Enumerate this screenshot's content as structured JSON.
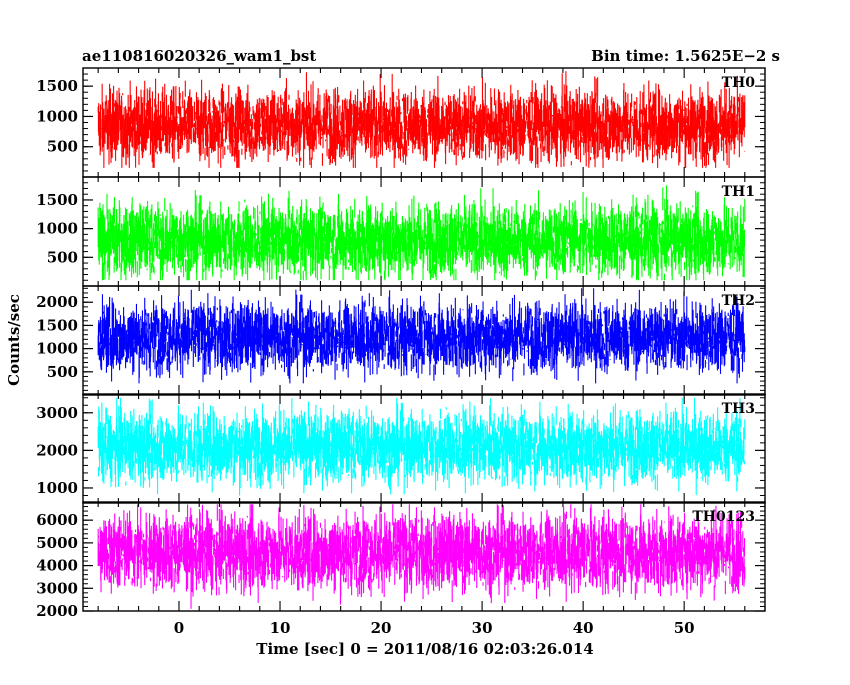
{
  "chart_data": {
    "type": "line",
    "title_left": "ae110816020326_wam1_bst",
    "title_right": "Bin time: 1.5625E−2 s",
    "xlabel": "Time [sec] 0 = 2011/08/16 02:03:26.014",
    "ylabel": "Counts/sec",
    "xlim": [
      -9.5,
      58
    ],
    "x_range": [
      -8,
      56
    ],
    "x_ticks": [
      0,
      10,
      20,
      30,
      40,
      50
    ],
    "x_tick_labels": [
      "0",
      "10",
      "20",
      "30",
      "40",
      "50"
    ],
    "grid": false,
    "panels": [
      {
        "name": "TH0",
        "color": "#ff0000",
        "ylim": [
          0,
          1800
        ],
        "y_ticks": [
          500,
          1000,
          1500
        ],
        "y_tick_labels": [
          "500",
          "1000",
          "1500"
        ],
        "mean": 850,
        "min": 150,
        "max": 1800
      },
      {
        "name": "TH1",
        "color": "#00ff00",
        "ylim": [
          0,
          1900
        ],
        "y_ticks": [
          500,
          1000,
          1500
        ],
        "y_tick_labels": [
          "500",
          "1000",
          "1500"
        ],
        "mean": 800,
        "min": 100,
        "max": 1850
      },
      {
        "name": "TH2",
        "color": "#0000ff",
        "ylim": [
          0,
          2350
        ],
        "y_ticks": [
          500,
          1000,
          1500,
          2000
        ],
        "y_tick_labels": [
          "500",
          "1000",
          "1500",
          "2000"
        ],
        "mean": 1250,
        "min": 250,
        "max": 2300
      },
      {
        "name": "TH3",
        "color": "#00ffff",
        "ylim": [
          600,
          3500
        ],
        "y_ticks": [
          1000,
          2000,
          3000
        ],
        "y_tick_labels": [
          "1000",
          "2000",
          "3000"
        ],
        "mean": 2100,
        "min": 800,
        "max": 3400
      },
      {
        "name": "TH0123",
        "color": "#ff00ff",
        "ylim": [
          2000,
          6800
        ],
        "y_ticks": [
          2000,
          3000,
          4000,
          5000,
          6000
        ],
        "y_tick_labels": [
          "2000",
          "3000",
          "4000",
          "5000",
          "6000"
        ],
        "mean": 4600,
        "min": 2100,
        "max": 6700
      }
    ]
  }
}
